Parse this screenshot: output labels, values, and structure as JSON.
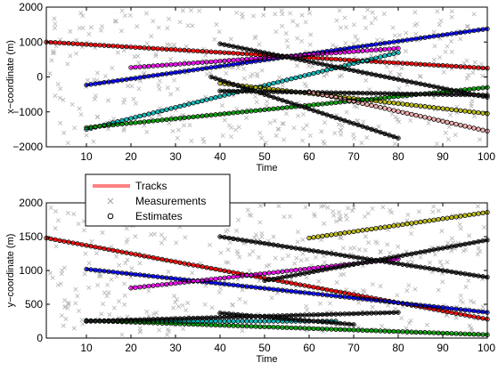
{
  "chart_data": [
    {
      "type": "scatter",
      "title": "",
      "xlabel": "Time",
      "ylabel": "x−coordinate (m)",
      "xlim": [
        1,
        100
      ],
      "ylim": [
        -2000,
        2000
      ],
      "x_ticks": [
        10,
        20,
        30,
        40,
        50,
        60,
        70,
        80,
        90,
        100
      ],
      "x_tick_labels": [
        "10",
        "20",
        "30",
        "40",
        "50",
        "60",
        "70",
        "80",
        "90",
        "100"
      ],
      "y_ticks": [
        -2000,
        -1000,
        0,
        1000,
        2000
      ],
      "y_tick_labels": [
        "−2000",
        "−1000",
        "0",
        "1000",
        "2000"
      ],
      "grid": false,
      "series": [
        {
          "color": "#ff0000",
          "x": [
            1,
            100
          ],
          "y": [
            1000,
            250
          ]
        },
        {
          "color": "#0000ff",
          "x": [
            10,
            100
          ],
          "y": [
            -230,
            1380
          ]
        },
        {
          "color": "#ff00ff",
          "x": [
            20,
            80
          ],
          "y": [
            270,
            820
          ]
        },
        {
          "color": "#00bfbf",
          "x": [
            10,
            80
          ],
          "y": [
            -1500,
            700
          ]
        },
        {
          "color": "#bfbf00",
          "x": [
            40,
            100
          ],
          "y": [
            -180,
            -1050
          ]
        },
        {
          "color": "#00a000",
          "x": [
            10,
            100
          ],
          "y": [
            -1450,
            -300
          ]
        },
        {
          "color": "#202020",
          "x": [
            40,
            100
          ],
          "y": [
            950,
            -580
          ]
        },
        {
          "color": "#202020",
          "x": [
            40,
            100
          ],
          "y": [
            -400,
            -520
          ]
        },
        {
          "color": "#202020",
          "x": [
            38,
            80
          ],
          "y": [
            0,
            -1750
          ]
        },
        {
          "color": "#ffb0b0",
          "x": [
            60,
            100
          ],
          "y": [
            -420,
            -1550
          ]
        }
      ]
    },
    {
      "type": "scatter",
      "title": "",
      "xlabel": "Time",
      "ylabel": "y−coordinate (m)",
      "xlim": [
        1,
        100
      ],
      "ylim": [
        0,
        2000
      ],
      "x_ticks": [
        10,
        20,
        30,
        40,
        50,
        60,
        70,
        80,
        90,
        100
      ],
      "x_tick_labels": [
        "10",
        "20",
        "30",
        "40",
        "50",
        "60",
        "70",
        "80",
        "90",
        "100"
      ],
      "y_ticks": [
        0,
        500,
        1000,
        1500,
        2000
      ],
      "y_tick_labels": [
        "0",
        "500",
        "1000",
        "1500",
        "2000"
      ],
      "grid": false,
      "legend_position": "top-left",
      "series": [
        {
          "color": "#ff0000",
          "x": [
            1,
            100
          ],
          "y": [
            1480,
            280
          ]
        },
        {
          "color": "#0000ff",
          "x": [
            10,
            100
          ],
          "y": [
            1020,
            380
          ]
        },
        {
          "color": "#ff00ff",
          "x": [
            20,
            80
          ],
          "y": [
            740,
            1170
          ]
        },
        {
          "color": "#00bfbf",
          "x": [
            10,
            66
          ],
          "y": [
            250,
            250
          ]
        },
        {
          "color": "#bfbf00",
          "x": [
            60,
            100
          ],
          "y": [
            1480,
            1860
          ]
        },
        {
          "color": "#00a000",
          "x": [
            10,
            100
          ],
          "y": [
            260,
            50
          ]
        },
        {
          "color": "#202020",
          "x": [
            40,
            100
          ],
          "y": [
            1500,
            900
          ]
        },
        {
          "color": "#202020",
          "x": [
            50,
            100
          ],
          "y": [
            850,
            1450
          ]
        },
        {
          "color": "#202020",
          "x": [
            10,
            80
          ],
          "y": [
            250,
            380
          ]
        },
        {
          "color": "#202020",
          "x": [
            40,
            70
          ],
          "y": [
            370,
            200
          ]
        }
      ]
    }
  ],
  "legend": {
    "entries": [
      {
        "label": "Tracks",
        "marker": "line",
        "color": "#ff8080"
      },
      {
        "label": "Measurements",
        "marker": "cross",
        "color": "#a0a0a0"
      },
      {
        "label": "Estimates",
        "marker": "circle",
        "color": "#000000"
      }
    ]
  },
  "colors": {
    "measurement": "#b4b4b4",
    "estimate_edge": "#000000",
    "axis": "#000000",
    "legend_track": "#ff8080"
  }
}
